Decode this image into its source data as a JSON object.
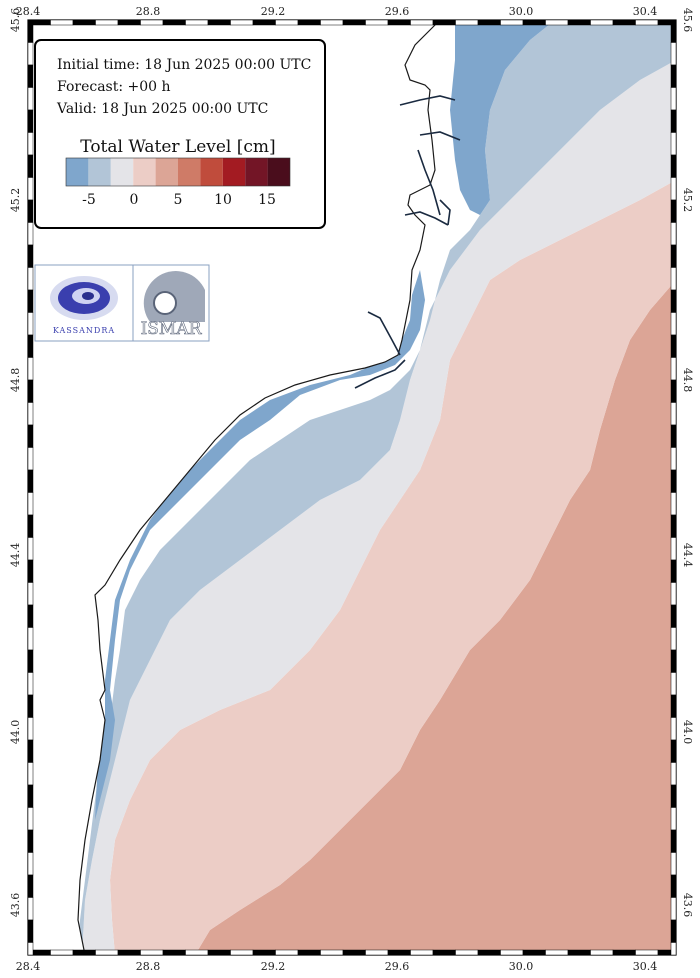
{
  "info": {
    "initial_time": "Initial time: 18 Jun 2025 00:00 UTC",
    "forecast": "Forecast: +00 h",
    "valid": "Valid: 18 Jun 2025 00:00 UTC"
  },
  "legend": {
    "title": "Total Water Level [cm]",
    "colors": [
      "#7fa6cc",
      "#b2c5d7",
      "#e4e4e8",
      "#eccdc6",
      "#dca596",
      "#cf7b67",
      "#c04c3c",
      "#a31b22",
      "#731526",
      "#4a0d1c"
    ],
    "tick_labels": [
      "-5",
      "0",
      "5",
      "10",
      "15"
    ]
  },
  "logos": {
    "left_text": "KASSANDRA",
    "right_text": "ISMAR"
  },
  "axes": {
    "lon_labels": [
      "28.4",
      "28.8",
      "29.2",
      "29.6",
      "30.0",
      "30.4"
    ],
    "lat_labels": [
      "45.6",
      "45.2",
      "44.8",
      "44.4",
      "44.0",
      "43.6"
    ]
  },
  "colors": {
    "land": "#ffffff",
    "coast": "#1a1a1a",
    "level_minus5": "#7fa6cc",
    "level_minus2": "#b2c5d7",
    "level_0": "#e4e4e8",
    "level_2": "#eccdc6",
    "level_5": "#dca596"
  }
}
